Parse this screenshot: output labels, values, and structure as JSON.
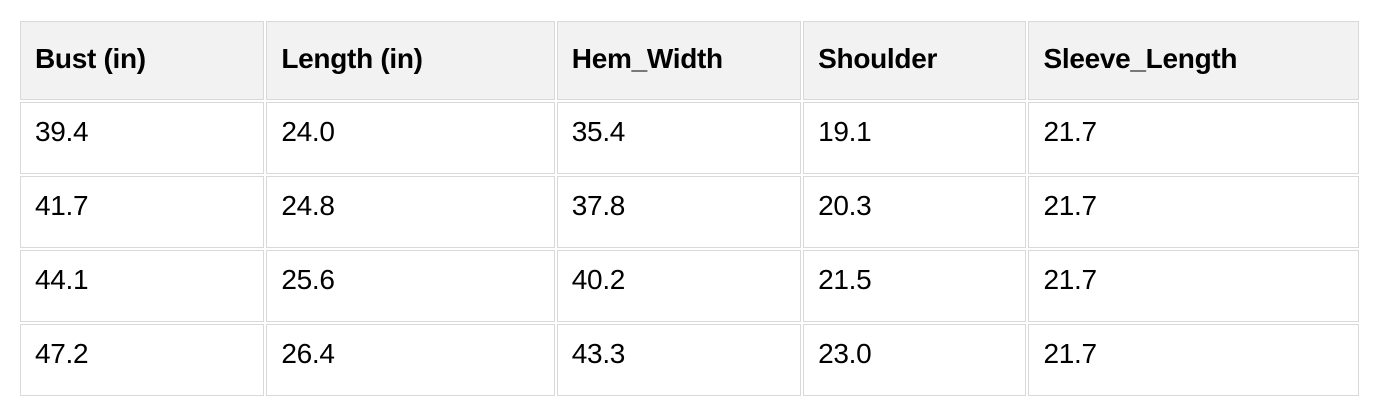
{
  "table": {
    "columns": [
      {
        "label": "Bust (in)"
      },
      {
        "label": "Length (in)"
      },
      {
        "label": "Hem_Width"
      },
      {
        "label": "Shoulder"
      },
      {
        "label": "Sleeve_Length"
      }
    ],
    "rows": [
      [
        "39.4",
        "24.0",
        "35.4",
        "19.1",
        "21.7"
      ],
      [
        "41.7",
        "24.8",
        "37.8",
        "20.3",
        "21.7"
      ],
      [
        "44.1",
        "25.6",
        "40.2",
        "21.5",
        "21.7"
      ],
      [
        "47.2",
        "26.4",
        "43.3",
        "23.0",
        "21.7"
      ]
    ]
  },
  "colors": {
    "header_bg": "#f2f2f2",
    "border": "#d9d9d9",
    "text": "#000000",
    "page_bg": "#ffffff"
  }
}
